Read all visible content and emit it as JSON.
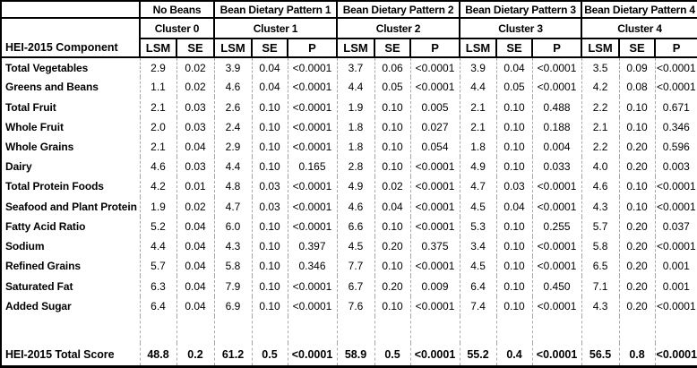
{
  "colors": {
    "background": "#ffffff",
    "text": "#000000",
    "solid_border": "#000000",
    "dashed_border": "#a8a8a8"
  },
  "chart_data": {
    "type": "table",
    "title": "HEI-2015 Component scores by bean dietary pattern cluster (LSM, SE, P)",
    "row_header": "HEI-2015 Component",
    "column_groups": [
      {
        "pattern": "No Beans",
        "cluster": "Cluster 0",
        "sub_columns": [
          "LSM",
          "SE"
        ]
      },
      {
        "pattern": "Bean Dietary Pattern 1",
        "cluster": "Cluster 1",
        "sub_columns": [
          "LSM",
          "SE",
          "P"
        ]
      },
      {
        "pattern": "Bean Dietary Pattern 2",
        "cluster": "Cluster 2",
        "sub_columns": [
          "LSM",
          "SE",
          "P"
        ]
      },
      {
        "pattern": "Bean Dietary Pattern 3",
        "cluster": "Cluster 3",
        "sub_columns": [
          "LSM",
          "SE",
          "P"
        ]
      },
      {
        "pattern": "Bean Dietary Pattern 4",
        "cluster": "Cluster 4",
        "sub_columns": [
          "LSM",
          "SE",
          "P"
        ]
      }
    ],
    "rows": [
      {
        "label": "Total Vegetables",
        "cells": [
          "2.9",
          "0.02",
          "3.9",
          "0.04",
          "<0.0001",
          "3.7",
          "0.06",
          "<0.0001",
          "3.9",
          "0.04",
          "<0.0001",
          "3.5",
          "0.09",
          "<0.0001"
        ]
      },
      {
        "label": "Greens and Beans",
        "cells": [
          "1.1",
          "0.02",
          "4.6",
          "0.04",
          "<0.0001",
          "4.4",
          "0.05",
          "<0.0001",
          "4.4",
          "0.05",
          "<0.0001",
          "4.2",
          "0.08",
          "<0.0001"
        ]
      },
      {
        "label": "Total Fruit",
        "cells": [
          "2.1",
          "0.03",
          "2.6",
          "0.10",
          "<0.0001",
          "1.9",
          "0.10",
          "0.005",
          "2.1",
          "0.10",
          "0.488",
          "2.2",
          "0.10",
          "0.671"
        ]
      },
      {
        "label": "Whole Fruit",
        "cells": [
          "2.0",
          "0.03",
          "2.4",
          "0.10",
          "<0.0001",
          "1.8",
          "0.10",
          "0.027",
          "2.1",
          "0.10",
          "0.188",
          "2.1",
          "0.10",
          "0.346"
        ]
      },
      {
        "label": "Whole Grains",
        "cells": [
          "2.1",
          "0.04",
          "2.9",
          "0.10",
          "<0.0001",
          "1.8",
          "0.10",
          "0.054",
          "1.8",
          "0.10",
          "0.004",
          "2.2",
          "0.20",
          "0.596"
        ]
      },
      {
        "label": "Dairy",
        "cells": [
          "4.6",
          "0.03",
          "4.4",
          "0.10",
          "0.165",
          "2.8",
          "0.10",
          "<0.0001",
          "4.9",
          "0.10",
          "0.033",
          "4.0",
          "0.20",
          "0.003"
        ]
      },
      {
        "label": "Total Protein Foods",
        "cells": [
          "4.2",
          "0.01",
          "4.8",
          "0.03",
          "<0.0001",
          "4.9",
          "0.02",
          "<0.0001",
          "4.7",
          "0.03",
          "<0.0001",
          "4.6",
          "0.10",
          "<0.0001"
        ]
      },
      {
        "label": "Seafood and Plant Protein",
        "cells": [
          "1.9",
          "0.02",
          "4.7",
          "0.03",
          "<0.0001",
          "4.6",
          "0.04",
          "<0.0001",
          "4.5",
          "0.04",
          "<0.0001",
          "4.3",
          "0.10",
          "<0.0001"
        ]
      },
      {
        "label": "Fatty Acid Ratio",
        "cells": [
          "5.2",
          "0.04",
          "6.0",
          "0.10",
          "<0.0001",
          "6.6",
          "0.10",
          "<0.0001",
          "5.3",
          "0.10",
          "0.255",
          "5.7",
          "0.20",
          "0.037"
        ]
      },
      {
        "label": "Sodium",
        "cells": [
          "4.4",
          "0.04",
          "4.3",
          "0.10",
          "0.397",
          "4.5",
          "0.20",
          "0.375",
          "3.4",
          "0.10",
          "<0.0001",
          "5.8",
          "0.20",
          "<0.0001"
        ]
      },
      {
        "label": "Refined Grains",
        "cells": [
          "5.7",
          "0.04",
          "5.8",
          "0.10",
          "0.346",
          "7.7",
          "0.10",
          "<0.0001",
          "4.5",
          "0.10",
          "<0.0001",
          "6.5",
          "0.20",
          "0.001"
        ]
      },
      {
        "label": "Saturated Fat",
        "cells": [
          "6.3",
          "0.04",
          "7.9",
          "0.10",
          "<0.0001",
          "6.7",
          "0.20",
          "0.009",
          "6.4",
          "0.10",
          "0.450",
          "7.1",
          "0.20",
          "0.001"
        ]
      },
      {
        "label": "Added Sugar",
        "cells": [
          "6.4",
          "0.04",
          "6.9",
          "0.10",
          "<0.0001",
          "7.6",
          "0.10",
          "<0.0001",
          "7.4",
          "0.10",
          "<0.0001",
          "4.3",
          "0.20",
          "<0.0001"
        ]
      }
    ],
    "total_row": {
      "label": "HEI-2015 Total Score",
      "cells": [
        "48.8",
        "0.2",
        "61.2",
        "0.5",
        "<0.0001",
        "58.9",
        "0.5",
        "<0.0001",
        "55.2",
        "0.4",
        "<0.0001",
        "56.5",
        "0.8",
        "<0.0001"
      ]
    },
    "layout": {
      "grid": "solid black header borders, dashed gray body column separators, no horizontal lines between body rows, empty spacer row before total row"
    }
  }
}
